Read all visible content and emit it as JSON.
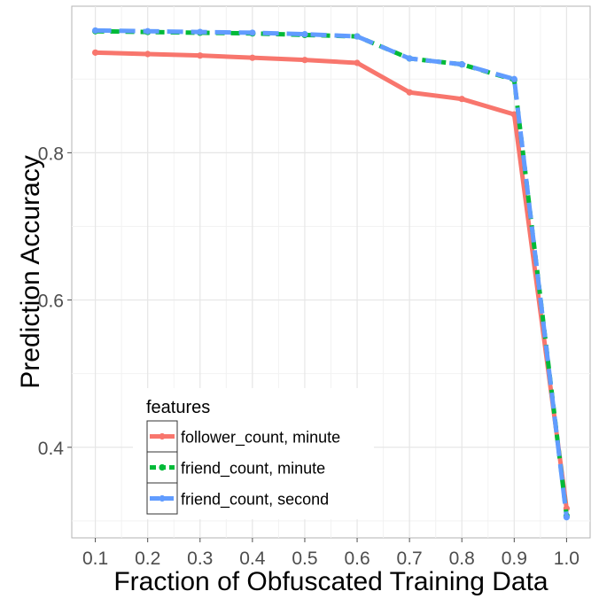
{
  "chart_data": {
    "type": "line",
    "xlabel": "Fraction of Obfuscated Training Data",
    "ylabel": "Prediction Accuracy",
    "x": [
      0.1,
      0.2,
      0.3,
      0.4,
      0.5,
      0.6,
      0.7,
      0.8,
      0.9,
      1.0
    ],
    "x_tick_labels": [
      "0.1",
      "0.2",
      "0.3",
      "0.4",
      "0.5",
      "0.6",
      "0.7",
      "0.8",
      "0.9",
      "1.0"
    ],
    "y_ticks": [
      0.4,
      0.6,
      0.8
    ],
    "y_tick_labels": [
      "0.4",
      "0.6",
      "0.8"
    ],
    "xlim": [
      0.055,
      1.045
    ],
    "ylim": [
      0.277,
      0.999
    ],
    "grid": true,
    "legend": {
      "title": "features",
      "placement": "bottom-left"
    },
    "series": [
      {
        "name": "follower_count, minute",
        "color": "#F8766D",
        "dash": "solid",
        "values": [
          0.936,
          0.934,
          0.932,
          0.929,
          0.926,
          0.922,
          0.882,
          0.873,
          0.852,
          0.317
        ]
      },
      {
        "name": "friend_count, minute",
        "color": "#00BA38",
        "dash": "dashed-short",
        "values": [
          0.965,
          0.964,
          0.963,
          0.962,
          0.96,
          0.958,
          0.928,
          0.92,
          0.899,
          0.307
        ]
      },
      {
        "name": "friend_count, second",
        "color": "#619CFF",
        "dash": "dashed-long",
        "values": [
          0.966,
          0.965,
          0.964,
          0.963,
          0.961,
          0.958,
          0.928,
          0.92,
          0.9,
          0.305
        ]
      }
    ]
  }
}
